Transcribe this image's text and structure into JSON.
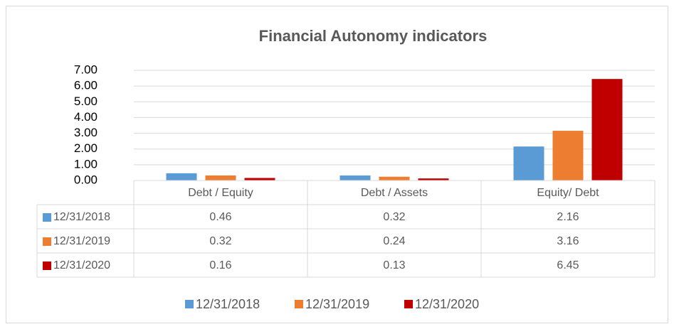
{
  "chart_data": {
    "type": "bar",
    "title": "Financial Autonomy indicators",
    "categories": [
      "Debt / Equity",
      "Debt / Assets",
      "Equity/ Debt"
    ],
    "series": [
      {
        "name": "12/31/2018",
        "color": "#5b9bd5",
        "values": [
          0.46,
          0.32,
          2.16
        ]
      },
      {
        "name": "12/31/2019",
        "color": "#ed7d31",
        "values": [
          0.32,
          0.24,
          3.16
        ]
      },
      {
        "name": "12/31/2020",
        "color": "#c00000",
        "values": [
          0.16,
          0.13,
          6.45
        ]
      }
    ],
    "ylim": [
      0,
      7
    ],
    "yticks": [
      {
        "value": 0,
        "label": "0.00"
      },
      {
        "value": 1,
        "label": "1.00"
      },
      {
        "value": 2,
        "label": "2.00"
      },
      {
        "value": 3,
        "label": "3.00"
      },
      {
        "value": 4,
        "label": "4.00"
      },
      {
        "value": 5,
        "label": "5.00"
      },
      {
        "value": 6,
        "label": "6.00"
      },
      {
        "value": 7,
        "label": "7.00"
      }
    ],
    "grid": true,
    "legend": "bottom",
    "data_table": true
  }
}
